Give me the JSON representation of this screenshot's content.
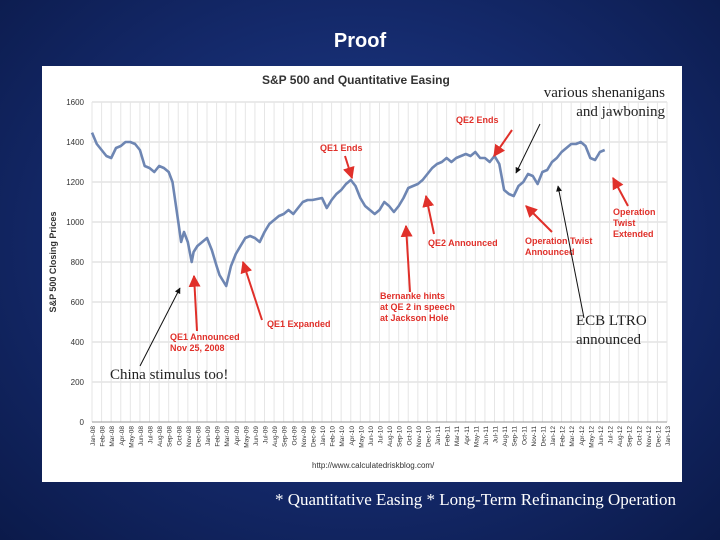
{
  "slide": {
    "title": "Proof",
    "footnote": "* Quantitative Easing * Long-Term Refinancing Operation",
    "note_top": [
      "various shenanigans",
      "and jawboning"
    ],
    "note_ecb": [
      "ECB LTRO",
      "announced"
    ],
    "note_china": "China stimulus too!",
    "colors": {
      "background": "#1b3680",
      "line": "#6e86b3",
      "annotation": "#e0302a"
    }
  },
  "chart_data": {
    "type": "line",
    "title": "S&P 500 and Quantitative Easing",
    "ylabel": "S&P 500 Closing Prices",
    "xlabel": "",
    "source": "http://www.calculatedriskblog.com/",
    "ylim": [
      0,
      1600
    ],
    "yticks": [
      0,
      200,
      400,
      600,
      800,
      1000,
      1200,
      1400,
      1600
    ],
    "grid": true,
    "x_categories": [
      "Jan-08",
      "Feb-08",
      "Mar-08",
      "Apr-08",
      "May-08",
      "Jun-08",
      "Jul-08",
      "Aug-08",
      "Sep-08",
      "Oct-08",
      "Nov-08",
      "Dec-08",
      "Jan-09",
      "Feb-09",
      "Mar-09",
      "Apr-09",
      "May-09",
      "Jun-09",
      "Jul-09",
      "Aug-09",
      "Sep-09",
      "Oct-09",
      "Nov-09",
      "Dec-09",
      "Jan-10",
      "Feb-10",
      "Mar-10",
      "Apr-10",
      "May-10",
      "Jun-10",
      "Jul-10",
      "Aug-10",
      "Sep-10",
      "Oct-10",
      "Nov-10",
      "Dec-10",
      "Jan-11",
      "Feb-11",
      "Mar-11",
      "Apr-11",
      "May-11",
      "Jun-11",
      "Jul-11",
      "Aug-11",
      "Sep-11",
      "Oct-11",
      "Nov-11",
      "Dec-11",
      "Jan-12",
      "Feb-12",
      "Mar-12",
      "Apr-12",
      "May-12",
      "Jun-12",
      "Jul-12",
      "Aug-12",
      "Sep-12",
      "Oct-12",
      "Nov-12",
      "Dec-12",
      "Jan-13"
    ],
    "series": [
      {
        "values": [
          [
            0,
            1447
          ],
          [
            0.5,
            1390
          ],
          [
            1,
            1360
          ],
          [
            1.5,
            1330
          ],
          [
            2,
            1320
          ],
          [
            2.5,
            1370
          ],
          [
            3,
            1380
          ],
          [
            3.5,
            1400
          ],
          [
            4,
            1400
          ],
          [
            4.5,
            1390
          ],
          [
            5,
            1360
          ],
          [
            5.5,
            1280
          ],
          [
            6,
            1270
          ],
          [
            6.5,
            1250
          ],
          [
            7,
            1280
          ],
          [
            7.5,
            1270
          ],
          [
            8,
            1250
          ],
          [
            8.4,
            1200
          ],
          [
            8.7,
            1100
          ],
          [
            9,
            1000
          ],
          [
            9.3,
            900
          ],
          [
            9.6,
            950
          ],
          [
            10,
            900
          ],
          [
            10.4,
            800
          ],
          [
            10.6,
            850
          ],
          [
            11,
            880
          ],
          [
            11.5,
            900
          ],
          [
            12,
            920
          ],
          [
            12.5,
            860
          ],
          [
            13,
            780
          ],
          [
            13.3,
            735
          ],
          [
            14,
            680
          ],
          [
            14.5,
            780
          ],
          [
            15,
            840
          ],
          [
            15.5,
            880
          ],
          [
            16,
            920
          ],
          [
            16.5,
            930
          ],
          [
            17,
            920
          ],
          [
            17.5,
            900
          ],
          [
            18,
            950
          ],
          [
            18.5,
            990
          ],
          [
            19,
            1010
          ],
          [
            19.5,
            1030
          ],
          [
            20,
            1040
          ],
          [
            20.5,
            1060
          ],
          [
            21,
            1040
          ],
          [
            21.5,
            1070
          ],
          [
            22,
            1100
          ],
          [
            22.5,
            1110
          ],
          [
            23,
            1110
          ],
          [
            24,
            1120
          ],
          [
            24.5,
            1070
          ],
          [
            25,
            1110
          ],
          [
            25.5,
            1140
          ],
          [
            26,
            1160
          ],
          [
            26.5,
            1190
          ],
          [
            27,
            1210
          ],
          [
            27.5,
            1180
          ],
          [
            28,
            1120
          ],
          [
            28.5,
            1080
          ],
          [
            29,
            1060
          ],
          [
            29.5,
            1040
          ],
          [
            30,
            1060
          ],
          [
            30.5,
            1100
          ],
          [
            31,
            1080
          ],
          [
            31.5,
            1050
          ],
          [
            32,
            1080
          ],
          [
            32.5,
            1120
          ],
          [
            33,
            1170
          ],
          [
            33.5,
            1180
          ],
          [
            34,
            1190
          ],
          [
            34.5,
            1210
          ],
          [
            35,
            1240
          ],
          [
            35.5,
            1270
          ],
          [
            36,
            1290
          ],
          [
            36.5,
            1300
          ],
          [
            37,
            1320
          ],
          [
            37.5,
            1300
          ],
          [
            38,
            1320
          ],
          [
            38.5,
            1330
          ],
          [
            39,
            1340
          ],
          [
            39.5,
            1330
          ],
          [
            40,
            1350
          ],
          [
            40.5,
            1320
          ],
          [
            41,
            1320
          ],
          [
            41.5,
            1300
          ],
          [
            42,
            1330
          ],
          [
            42.5,
            1290
          ],
          [
            43,
            1160
          ],
          [
            43.5,
            1140
          ],
          [
            44,
            1130
          ],
          [
            44.5,
            1180
          ],
          [
            45,
            1200
          ],
          [
            45.5,
            1240
          ],
          [
            46,
            1230
          ],
          [
            46.5,
            1190
          ],
          [
            47,
            1250
          ],
          [
            47.5,
            1260
          ],
          [
            48,
            1300
          ],
          [
            48.5,
            1320
          ],
          [
            49,
            1350
          ],
          [
            49.5,
            1370
          ],
          [
            50,
            1390
          ],
          [
            50.5,
            1390
          ],
          [
            51,
            1400
          ],
          [
            51.5,
            1380
          ],
          [
            52,
            1320
          ],
          [
            52.5,
            1310
          ],
          [
            53,
            1350
          ],
          [
            53.5,
            1360
          ]
        ]
      }
    ],
    "annotations": [
      {
        "text": [
          "QE2 Ends"
        ]
      },
      {
        "text": [
          "QE1 Ends"
        ]
      },
      {
        "text": [
          "Operation",
          "Twist",
          "Extended"
        ]
      },
      {
        "text": [
          "QE2 Announced"
        ]
      },
      {
        "text": [
          "Operation Twist",
          "Announced"
        ]
      },
      {
        "text": [
          "Bernanke hints",
          "at QE 2 in speech",
          "at Jackson Hole"
        ]
      },
      {
        "text": [
          "QE1 Expanded"
        ]
      },
      {
        "text": [
          "QE1 Announced",
          "Nov 25, 2008"
        ]
      }
    ]
  }
}
